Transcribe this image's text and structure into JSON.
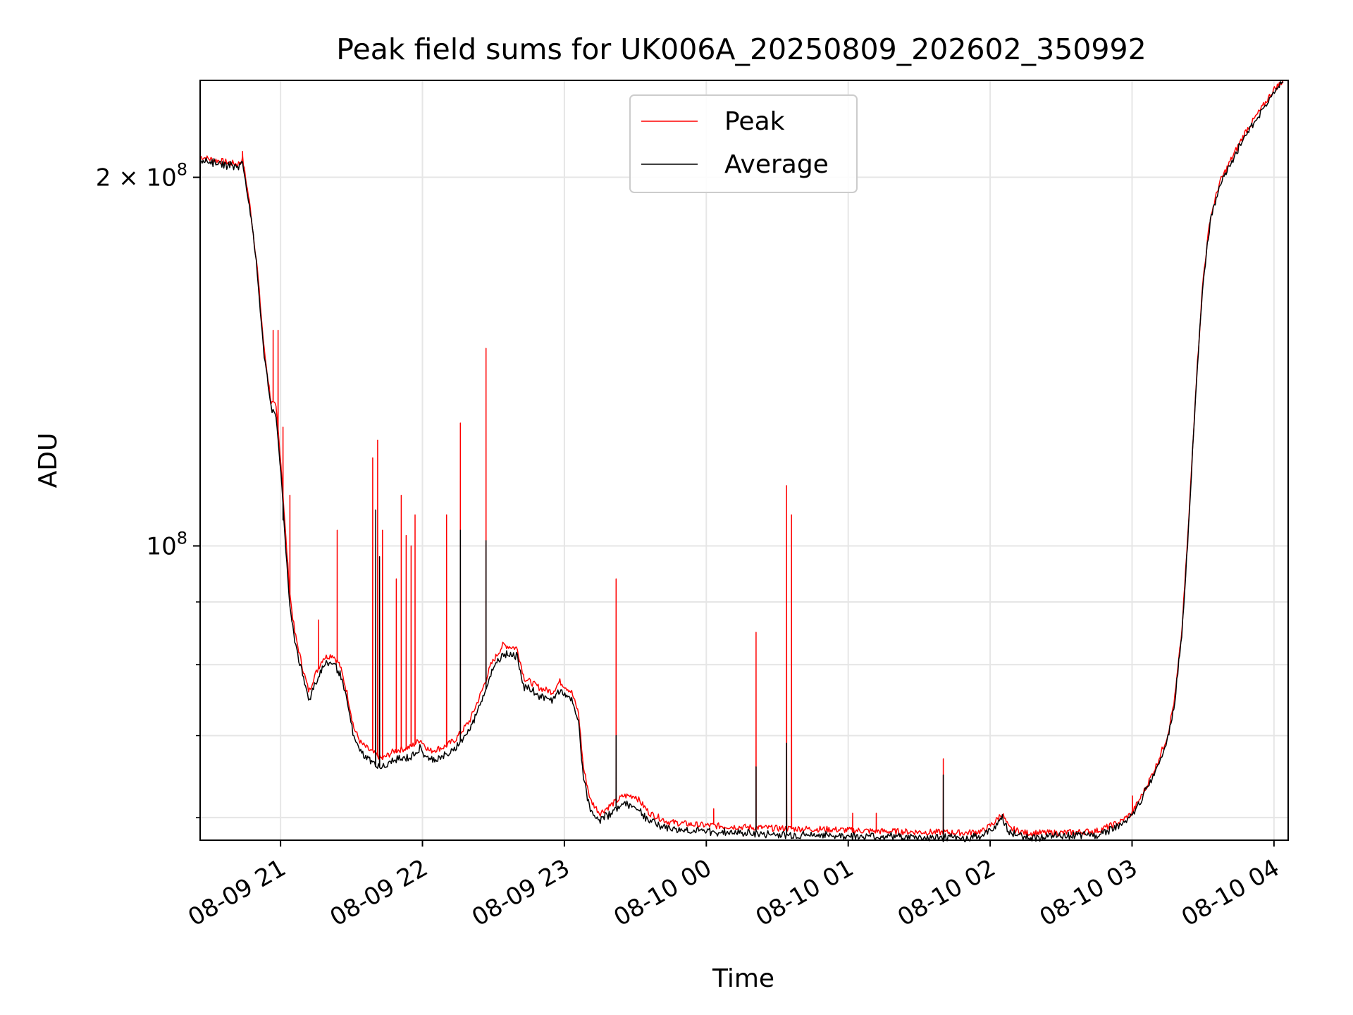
{
  "chart_data": {
    "type": "line",
    "title": "Peak field sums for UK006A_20250809_202602_350992",
    "xlabel": "Time",
    "ylabel": "ADU",
    "y_scale": "log",
    "ylim": [
      57500000,
      240000000
    ],
    "xlim": [
      "2025-08-09 20:26",
      "2025-08-10 04:06"
    ],
    "x_ticks": [
      {
        "t": "2025-08-09 21:00",
        "label": "08-09 21"
      },
      {
        "t": "2025-08-09 22:00",
        "label": "08-09 22"
      },
      {
        "t": "2025-08-09 23:00",
        "label": "08-09 23"
      },
      {
        "t": "2025-08-10 00:00",
        "label": "08-10 00"
      },
      {
        "t": "2025-08-10 01:00",
        "label": "08-10 01"
      },
      {
        "t": "2025-08-10 02:00",
        "label": "08-10 02"
      },
      {
        "t": "2025-08-10 03:00",
        "label": "08-10 03"
      },
      {
        "t": "2025-08-10 04:00",
        "label": "08-10 04"
      }
    ],
    "y_major_ticks": [
      {
        "v": 200000000,
        "label_main": "2 × 10",
        "label_exp": "8"
      },
      {
        "v": 100000000,
        "label_main": "10",
        "label_exp": "8"
      }
    ],
    "y_minor_ticks": [
      60000000,
      70000000,
      80000000,
      90000000
    ],
    "grid": true,
    "legend_position": "top-center",
    "series": [
      {
        "name": "Peak",
        "color": "#ff0000",
        "points": [
          [
            "2025-08-09 20:26",
            208000000
          ],
          [
            "2025-08-09 20:30",
            207000000
          ],
          [
            "2025-08-09 20:36",
            206000000
          ],
          [
            "2025-08-09 20:42",
            205000000
          ],
          [
            "2025-08-09 20:44",
            207000000
          ],
          [
            "2025-08-09 20:47",
            190000000
          ],
          [
            "2025-08-09 20:50",
            170000000
          ],
          [
            "2025-08-09 20:53",
            145000000
          ],
          [
            "2025-08-09 20:56",
            131000000
          ],
          [
            "2025-08-09 20:58",
            130000000
          ],
          [
            "2025-08-09 21:00",
            118000000
          ],
          [
            "2025-08-09 21:02",
            103000000
          ],
          [
            "2025-08-09 21:04",
            91000000
          ],
          [
            "2025-08-09 21:06",
            85000000
          ],
          [
            "2025-08-09 21:09",
            80000000
          ],
          [
            "2025-08-09 21:12",
            76000000
          ],
          [
            "2025-08-09 21:14",
            78000000
          ],
          [
            "2025-08-09 21:18",
            81000000
          ],
          [
            "2025-08-09 21:22",
            81500000
          ],
          [
            "2025-08-09 21:25",
            80000000
          ],
          [
            "2025-08-09 21:28",
            76000000
          ],
          [
            "2025-08-09 21:31",
            71000000
          ],
          [
            "2025-08-09 21:34",
            69000000
          ],
          [
            "2025-08-09 21:38",
            68000000
          ],
          [
            "2025-08-09 21:43",
            67000000
          ],
          [
            "2025-08-09 21:48",
            68000000
          ],
          [
            "2025-08-09 21:55",
            68500000
          ],
          [
            "2025-08-09 21:59",
            69500000
          ],
          [
            "2025-08-09 22:03",
            68000000
          ],
          [
            "2025-08-09 22:09",
            68500000
          ],
          [
            "2025-08-09 22:14",
            69500000
          ],
          [
            "2025-08-09 22:20",
            72000000
          ],
          [
            "2025-08-09 22:25",
            76000000
          ],
          [
            "2025-08-09 22:29",
            80000000
          ],
          [
            "2025-08-09 22:34",
            83000000
          ],
          [
            "2025-08-09 22:40",
            82500000
          ],
          [
            "2025-08-09 22:43",
            78000000
          ],
          [
            "2025-08-09 22:50",
            76500000
          ],
          [
            "2025-08-09 22:55",
            76000000
          ],
          [
            "2025-08-09 22:58",
            77500000
          ],
          [
            "2025-08-09 23:03",
            76000000
          ],
          [
            "2025-08-09 23:06",
            73000000
          ],
          [
            "2025-08-09 23:08",
            66000000
          ],
          [
            "2025-08-09 23:11",
            62000000
          ],
          [
            "2025-08-09 23:15",
            60500000
          ],
          [
            "2025-08-09 23:20",
            61500000
          ],
          [
            "2025-08-09 23:25",
            62500000
          ],
          [
            "2025-08-09 23:30",
            62500000
          ],
          [
            "2025-08-09 23:36",
            60500000
          ],
          [
            "2025-08-09 23:44",
            59500000
          ],
          [
            "2025-08-09 23:55",
            59200000
          ],
          [
            "2025-08-10 00:10",
            59000000
          ],
          [
            "2025-08-10 00:30",
            58800000
          ],
          [
            "2025-08-10 00:50",
            58700000
          ],
          [
            "2025-08-10 01:10",
            58500000
          ],
          [
            "2025-08-10 01:30",
            58400000
          ],
          [
            "2025-08-10 01:50",
            58300000
          ],
          [
            "2025-08-10 01:57",
            58500000
          ],
          [
            "2025-08-10 02:02",
            59500000
          ],
          [
            "2025-08-10 02:05",
            60500000
          ],
          [
            "2025-08-10 02:08",
            58800000
          ],
          [
            "2025-08-10 02:15",
            58300000
          ],
          [
            "2025-08-10 02:30",
            58300000
          ],
          [
            "2025-08-10 02:45",
            58500000
          ],
          [
            "2025-08-10 02:55",
            59500000
          ],
          [
            "2025-08-10 03:00",
            60500000
          ],
          [
            "2025-08-10 03:05",
            63000000
          ],
          [
            "2025-08-10 03:10",
            66000000
          ],
          [
            "2025-08-10 03:15",
            70000000
          ],
          [
            "2025-08-10 03:18",
            75000000
          ],
          [
            "2025-08-10 03:21",
            85000000
          ],
          [
            "2025-08-10 03:24",
            105000000
          ],
          [
            "2025-08-10 03:27",
            135000000
          ],
          [
            "2025-08-10 03:30",
            165000000
          ],
          [
            "2025-08-10 03:33",
            185000000
          ],
          [
            "2025-08-10 03:37",
            198000000
          ],
          [
            "2025-08-10 03:42",
            207000000
          ],
          [
            "2025-08-10 03:48",
            218000000
          ],
          [
            "2025-08-10 03:55",
            228000000
          ],
          [
            "2025-08-10 04:00",
            236000000
          ],
          [
            "2025-08-10 04:04",
            240000000
          ]
        ],
        "spikes": [
          [
            "2025-08-09 20:44",
            210000000
          ],
          [
            "2025-08-09 20:57",
            150000000
          ],
          [
            "2025-08-09 20:59",
            150000000
          ],
          [
            "2025-08-09 21:01",
            125000000
          ],
          [
            "2025-08-09 21:04",
            110000000
          ],
          [
            "2025-08-09 21:16",
            87000000
          ],
          [
            "2025-08-09 21:24",
            103000000
          ],
          [
            "2025-08-09 21:39",
            118000000
          ],
          [
            "2025-08-09 21:41",
            122000000
          ],
          [
            "2025-08-09 21:43",
            103000000
          ],
          [
            "2025-08-09 21:49",
            94000000
          ],
          [
            "2025-08-09 21:51",
            110000000
          ],
          [
            "2025-08-09 21:53",
            102000000
          ],
          [
            "2025-08-09 21:55",
            100000000
          ],
          [
            "2025-08-09 21:57",
            106000000
          ],
          [
            "2025-08-09 22:10",
            106000000
          ],
          [
            "2025-08-09 22:16",
            126000000
          ],
          [
            "2025-08-09 22:27",
            145000000
          ],
          [
            "2025-08-09 23:22",
            94000000
          ],
          [
            "2025-08-10 00:03",
            61000000
          ],
          [
            "2025-08-10 00:21",
            85000000
          ],
          [
            "2025-08-10 00:34",
            112000000
          ],
          [
            "2025-08-10 00:36",
            106000000
          ],
          [
            "2025-08-10 01:02",
            60500000
          ],
          [
            "2025-08-10 01:12",
            60500000
          ],
          [
            "2025-08-10 01:40",
            67000000
          ],
          [
            "2025-08-10 03:00",
            62500000
          ]
        ]
      },
      {
        "name": "Average",
        "color": "#000000",
        "points": [
          [
            "2025-08-09 20:26",
            207500000
          ],
          [
            "2025-08-09 20:30",
            206500000
          ],
          [
            "2025-08-09 20:36",
            205500000
          ],
          [
            "2025-08-09 20:42",
            204500000
          ],
          [
            "2025-08-09 20:44",
            206500000
          ],
          [
            "2025-08-09 20:47",
            189000000
          ],
          [
            "2025-08-09 20:50",
            169000000
          ],
          [
            "2025-08-09 20:53",
            144000000
          ],
          [
            "2025-08-09 20:56",
            130000000
          ],
          [
            "2025-08-09 20:58",
            129000000
          ],
          [
            "2025-08-09 21:00",
            116000000
          ],
          [
            "2025-08-09 21:02",
            101000000
          ],
          [
            "2025-08-09 21:04",
            89000000
          ],
          [
            "2025-08-09 21:06",
            84000000
          ],
          [
            "2025-08-09 21:09",
            79000000
          ],
          [
            "2025-08-09 21:12",
            75000000
          ],
          [
            "2025-08-09 21:14",
            77000000
          ],
          [
            "2025-08-09 21:18",
            80000000
          ],
          [
            "2025-08-09 21:22",
            80500000
          ],
          [
            "2025-08-09 21:25",
            79000000
          ],
          [
            "2025-08-09 21:28",
            75000000
          ],
          [
            "2025-08-09 21:31",
            70000000
          ],
          [
            "2025-08-09 21:34",
            68000000
          ],
          [
            "2025-08-09 21:38",
            67000000
          ],
          [
            "2025-08-09 21:43",
            66000000
          ],
          [
            "2025-08-09 21:48",
            67000000
          ],
          [
            "2025-08-09 21:55",
            67500000
          ],
          [
            "2025-08-09 21:59",
            68500000
          ],
          [
            "2025-08-09 22:03",
            67000000
          ],
          [
            "2025-08-09 22:09",
            67500000
          ],
          [
            "2025-08-09 22:14",
            68500000
          ],
          [
            "2025-08-09 22:20",
            71000000
          ],
          [
            "2025-08-09 22:25",
            75000000
          ],
          [
            "2025-08-09 22:29",
            79000000
          ],
          [
            "2025-08-09 22:34",
            82000000
          ],
          [
            "2025-08-09 22:40",
            81500000
          ],
          [
            "2025-08-09 22:43",
            77000000
          ],
          [
            "2025-08-09 22:50",
            75500000
          ],
          [
            "2025-08-09 22:55",
            75000000
          ],
          [
            "2025-08-09 22:58",
            76500000
          ],
          [
            "2025-08-09 23:03",
            75000000
          ],
          [
            "2025-08-09 23:06",
            72000000
          ],
          [
            "2025-08-09 23:08",
            65000000
          ],
          [
            "2025-08-09 23:11",
            61000000
          ],
          [
            "2025-08-09 23:15",
            59800000
          ],
          [
            "2025-08-09 23:20",
            60800000
          ],
          [
            "2025-08-09 23:25",
            61800000
          ],
          [
            "2025-08-09 23:30",
            61500000
          ],
          [
            "2025-08-09 23:36",
            59800000
          ],
          [
            "2025-08-09 23:44",
            59000000
          ],
          [
            "2025-08-09 23:55",
            58700000
          ],
          [
            "2025-08-10 00:10",
            58500000
          ],
          [
            "2025-08-10 00:30",
            58300000
          ],
          [
            "2025-08-10 00:50",
            58200000
          ],
          [
            "2025-08-10 01:10",
            58100000
          ],
          [
            "2025-08-10 01:30",
            58000000
          ],
          [
            "2025-08-10 01:50",
            57900000
          ],
          [
            "2025-08-10 01:57",
            58200000
          ],
          [
            "2025-08-10 02:02",
            59200000
          ],
          [
            "2025-08-10 02:05",
            60200000
          ],
          [
            "2025-08-10 02:08",
            58500000
          ],
          [
            "2025-08-10 02:15",
            58000000
          ],
          [
            "2025-08-10 02:30",
            58100000
          ],
          [
            "2025-08-10 02:45",
            58300000
          ],
          [
            "2025-08-10 02:55",
            59300000
          ],
          [
            "2025-08-10 03:00",
            60300000
          ],
          [
            "2025-08-10 03:05",
            62800000
          ],
          [
            "2025-08-10 03:10",
            65800000
          ],
          [
            "2025-08-10 03:15",
            69800000
          ],
          [
            "2025-08-10 03:18",
            74800000
          ],
          [
            "2025-08-10 03:21",
            84800000
          ],
          [
            "2025-08-10 03:24",
            104500000
          ],
          [
            "2025-08-10 03:27",
            134500000
          ],
          [
            "2025-08-10 03:30",
            164500000
          ],
          [
            "2025-08-10 03:33",
            184500000
          ],
          [
            "2025-08-10 03:37",
            197500000
          ],
          [
            "2025-08-10 03:42",
            206500000
          ],
          [
            "2025-08-10 03:48",
            217500000
          ],
          [
            "2025-08-10 03:55",
            227500000
          ],
          [
            "2025-08-10 04:00",
            235500000
          ],
          [
            "2025-08-10 04:04",
            240000000
          ]
        ],
        "spikes": [
          [
            "2025-08-09 21:01",
            105000000
          ],
          [
            "2025-08-09 21:40",
            107000000
          ],
          [
            "2025-08-09 21:42",
            98000000
          ],
          [
            "2025-08-09 22:16",
            103000000
          ],
          [
            "2025-08-09 22:27",
            101000000
          ],
          [
            "2025-08-09 23:22",
            70000000
          ],
          [
            "2025-08-10 00:21",
            66000000
          ],
          [
            "2025-08-10 00:34",
            69000000
          ],
          [
            "2025-08-10 01:40",
            65000000
          ]
        ]
      }
    ]
  }
}
